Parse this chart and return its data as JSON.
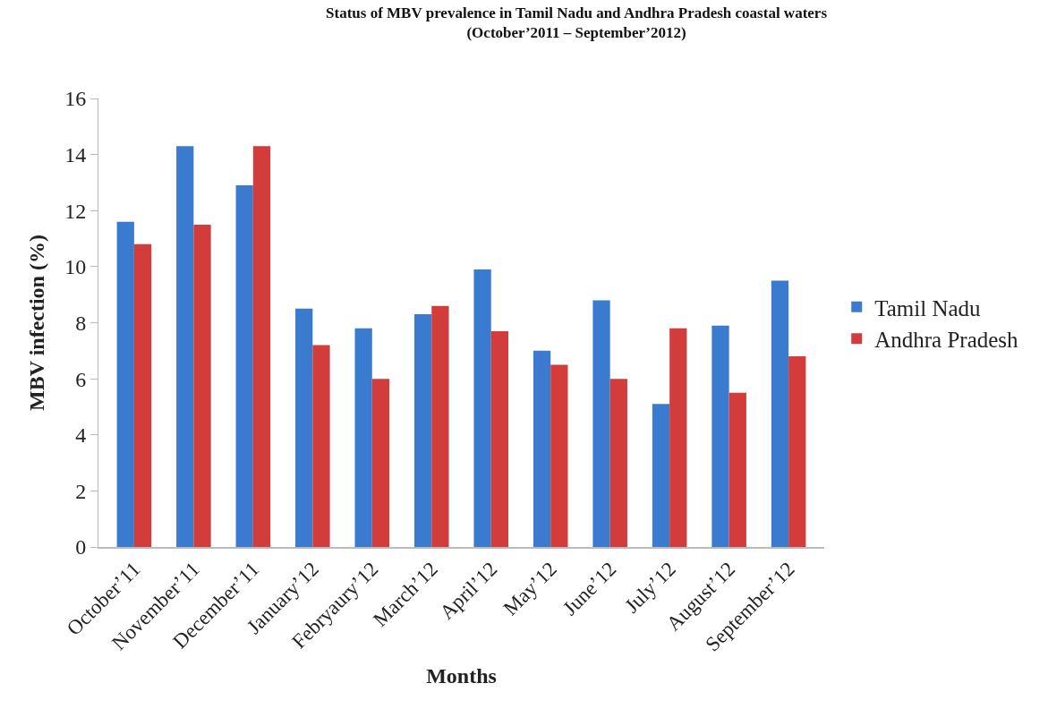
{
  "chart_data": {
    "type": "bar",
    "title": "Status of MBV prevalence in Tamil Nadu and Andhra Pradesh coastal waters\n(October’2011 – September’2012)",
    "xlabel": "Months",
    "ylabel": "MBV infection (%)",
    "categories": [
      "October’11",
      "November’11",
      "December’11",
      "January’12",
      "Febryaury’12",
      "March’12",
      "April’12",
      "May’12",
      "June’12",
      "July’12",
      "August’12",
      "September’12"
    ],
    "series": [
      {
        "name": "Tamil Nadu",
        "color": "#3a7bd0",
        "values": [
          11.6,
          14.3,
          12.9,
          8.5,
          7.8,
          8.3,
          9.9,
          7.0,
          8.8,
          5.1,
          7.9,
          9.5
        ]
      },
      {
        "name": "Andhra Pradesh",
        "color": "#d23c3a",
        "values": [
          10.8,
          11.5,
          14.3,
          7.2,
          6.0,
          8.6,
          7.7,
          6.5,
          6.0,
          7.8,
          5.5,
          6.8
        ]
      }
    ],
    "ylim": [
      0,
      16
    ],
    "yticks": [
      0,
      2,
      4,
      6,
      8,
      10,
      12,
      14,
      16
    ],
    "legend": "right"
  }
}
